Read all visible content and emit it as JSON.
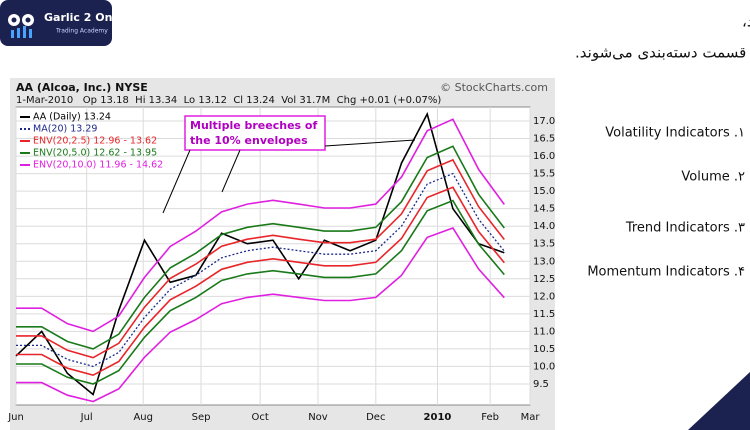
{
  "logo": {
    "name": "Garlic 2 Onion",
    "tagline": "Trading Academy"
  },
  "intro": [
    "اندیکاتورهای مالی، بر اساس نوع کاربری و نتایج خروجی به‌دست آمده خود،",
    "به چهار قسمت دسته‌بندی می‌شوند."
  ],
  "list": [
    "Volatility Indicators .۱",
    "Volume .۲",
    "Trend Indicators .۳",
    "Momentum Indicators .۴"
  ],
  "chart_data": {
    "type": "line",
    "title": "AA (Alcoa, Inc.) NYSE",
    "subtitle": "1-Mar-2010   Op 13.18  Hi 13.34  Lo 13.12  Cl 13.24  Vol 31.7M  Chg +0.01 (+0.07%)",
    "source": "© StockCharts.com",
    "annotation": [
      "Multiple breeches of",
      "the 10% envelopes"
    ],
    "x": [
      0,
      2,
      4,
      6,
      8,
      10,
      12,
      14,
      16,
      18,
      20,
      22,
      24,
      26,
      28,
      30,
      32,
      34,
      36,
      38
    ],
    "xlim": [
      0,
      40
    ],
    "xticks": [
      {
        "value": 0,
        "label": "Jun"
      },
      {
        "value": 5.5,
        "label": "Jul"
      },
      {
        "value": 9.9,
        "label": "Aug"
      },
      {
        "value": 14.4,
        "label": "Sep"
      },
      {
        "value": 19,
        "label": "Oct"
      },
      {
        "value": 23.5,
        "label": "Nov"
      },
      {
        "value": 28,
        "label": "Dec"
      },
      {
        "value": 32.8,
        "label": "2010"
      },
      {
        "value": 36.9,
        "label": "Feb"
      },
      {
        "value": 40,
        "label": "Mar"
      }
    ],
    "ylim": [
      8.9,
      17.4
    ],
    "yticks": [
      9.5,
      {
        "value": 10,
        "label": "10.0"
      },
      10.5,
      {
        "value": 11,
        "label": "11.0"
      },
      11.5,
      {
        "value": 12,
        "label": "12.0"
      },
      12.5,
      {
        "value": 13,
        "label": "13.0"
      },
      13.5,
      {
        "value": 14,
        "label": "14.0"
      },
      14.5,
      {
        "value": 15,
        "label": "15.0"
      },
      15.5,
      {
        "value": 16,
        "label": "16.0"
      },
      16.5,
      {
        "value": 17,
        "label": "17.0"
      }
    ],
    "grid": true,
    "series": [
      {
        "name": "AA (Daily) 13.24",
        "color": "#000000",
        "values": [
          10.3,
          11.0,
          9.8,
          9.2,
          11.6,
          13.6,
          12.4,
          12.6,
          13.8,
          13.5,
          13.6,
          12.5,
          13.6,
          13.3,
          13.6,
          15.8,
          17.2,
          14.5,
          13.5,
          13.24
        ]
      },
      {
        "name": "MA(20) 13.29",
        "color": "#1c2a8c",
        "dash": true,
        "values": [
          10.6,
          10.6,
          10.2,
          10.0,
          10.4,
          11.4,
          12.2,
          12.6,
          13.1,
          13.3,
          13.4,
          13.3,
          13.2,
          13.2,
          13.3,
          14.0,
          15.2,
          15.5,
          14.2,
          13.29
        ]
      },
      {
        "name": "ENV(20,2.5) 12.96 - 13.62",
        "color": "#e8262a",
        "lower": [
          10.34,
          10.34,
          9.95,
          9.75,
          10.14,
          11.12,
          11.9,
          12.29,
          12.77,
          12.97,
          13.07,
          12.97,
          12.87,
          12.87,
          12.97,
          13.65,
          14.82,
          15.11,
          13.85,
          12.96
        ],
        "upper": [
          10.87,
          10.87,
          10.46,
          10.25,
          10.66,
          11.69,
          12.51,
          12.92,
          13.43,
          13.63,
          13.74,
          13.63,
          13.53,
          13.53,
          13.63,
          14.35,
          15.58,
          15.89,
          14.56,
          13.62
        ]
      },
      {
        "name": "ENV(20,5.0) 12.62 - 13.95",
        "color": "#1a7a1a",
        "lower": [
          10.07,
          10.07,
          9.69,
          9.5,
          9.88,
          10.83,
          11.59,
          11.97,
          12.45,
          12.64,
          12.73,
          12.64,
          12.54,
          12.54,
          12.64,
          13.3,
          14.44,
          14.73,
          13.49,
          12.62
        ],
        "upper": [
          11.13,
          11.13,
          10.71,
          10.5,
          10.92,
          11.97,
          12.81,
          13.23,
          13.76,
          13.97,
          14.07,
          13.97,
          13.86,
          13.86,
          13.97,
          14.7,
          15.96,
          16.28,
          14.91,
          13.95
        ]
      },
      {
        "name": "ENV(20,10.0) 11.96 - 14.62",
        "color": "#e020e0",
        "lower": [
          9.54,
          9.54,
          9.18,
          9.0,
          9.36,
          10.26,
          10.98,
          11.34,
          11.79,
          11.97,
          12.06,
          11.97,
          11.88,
          11.88,
          11.97,
          12.6,
          13.68,
          13.95,
          12.78,
          11.96
        ],
        "upper": [
          11.66,
          11.66,
          11.22,
          11.0,
          11.44,
          12.54,
          13.42,
          13.86,
          14.41,
          14.63,
          14.74,
          14.63,
          14.52,
          14.52,
          14.63,
          15.4,
          16.72,
          17.05,
          15.62,
          14.62
        ]
      }
    ]
  }
}
